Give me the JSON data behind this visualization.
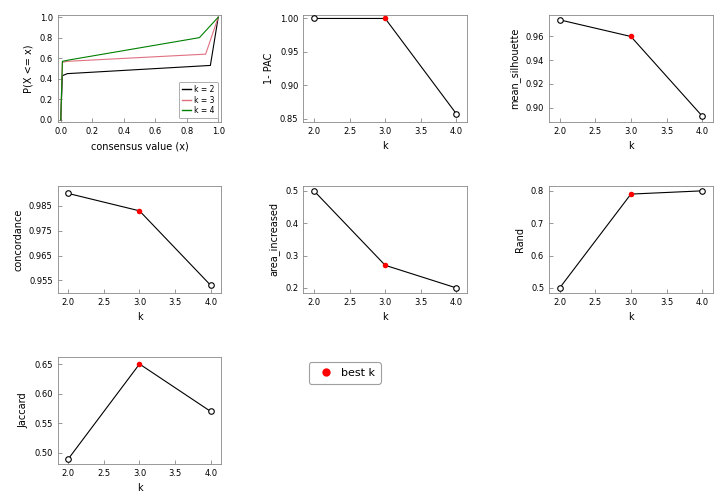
{
  "ecdf_colors": [
    "black",
    "#e07080",
    "green"
  ],
  "ecdf_legend": [
    "k = 2",
    "k = 3",
    "k = 4"
  ],
  "one_pac": {
    "k": [
      2,
      3,
      4
    ],
    "y": [
      1.0,
      1.0,
      0.857
    ],
    "best_k": 3,
    "yticks": [
      0.85,
      0.9,
      0.95,
      1.0
    ],
    "ylim": [
      0.845,
      1.005
    ]
  },
  "mean_silhouette": {
    "k": [
      2,
      3,
      4
    ],
    "y": [
      0.974,
      0.96,
      0.893
    ],
    "best_k": 3,
    "yticks": [
      0.9,
      0.92,
      0.94,
      0.96
    ],
    "ylim": [
      0.888,
      0.978
    ]
  },
  "concordance": {
    "k": [
      2,
      3,
      4
    ],
    "y": [
      0.99,
      0.983,
      0.953
    ],
    "best_k": 3,
    "yticks": [
      0.955,
      0.965,
      0.975,
      0.985
    ],
    "ylim": [
      0.95,
      0.993
    ]
  },
  "area_increased": {
    "k": [
      2,
      3,
      4
    ],
    "y": [
      0.5,
      0.27,
      0.2
    ],
    "best_k": 3,
    "yticks": [
      0.2,
      0.3,
      0.4,
      0.5
    ],
    "ylim": [
      0.185,
      0.515
    ]
  },
  "rand": {
    "k": [
      2,
      3,
      4
    ],
    "y": [
      0.5,
      0.79,
      0.8
    ],
    "best_k": 3,
    "yticks": [
      0.5,
      0.6,
      0.7,
      0.8
    ],
    "ylim": [
      0.485,
      0.815
    ]
  },
  "jaccard": {
    "k": [
      2,
      3,
      4
    ],
    "y": [
      0.49,
      0.65,
      0.57
    ],
    "best_k": 3,
    "yticks": [
      0.5,
      0.55,
      0.6,
      0.65
    ],
    "ylim": [
      0.482,
      0.662
    ]
  },
  "bg_color": "white",
  "line_color": "black",
  "best_dot_color": "red",
  "open_dot_color": "white",
  "dot_edgecolor": "black"
}
